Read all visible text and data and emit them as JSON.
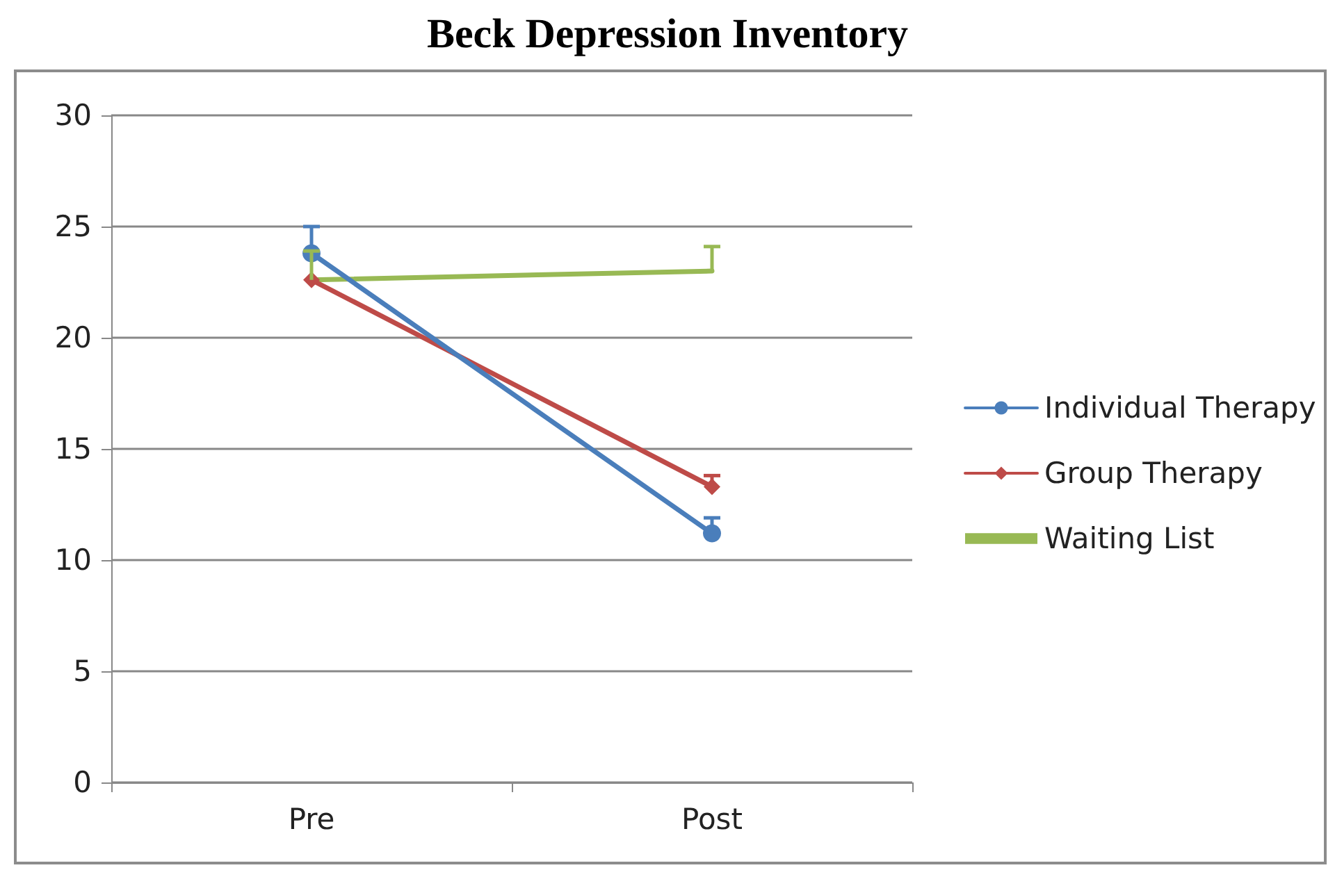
{
  "chart_data": {
    "type": "line",
    "title": "Beck Depression Inventory",
    "categories": [
      "Pre",
      "Post"
    ],
    "series": [
      {
        "name": "Individual Therapy",
        "color": "#4a7ebb",
        "marker": "circle",
        "values": [
          23.8,
          11.2
        ],
        "errors": [
          [
            23.8,
            25.0
          ],
          [
            11.2,
            11.9
          ]
        ]
      },
      {
        "name": "Group Therapy",
        "color": "#be4b48",
        "marker": "diamond",
        "values": [
          22.6,
          13.3
        ],
        "errors": [
          null,
          [
            13.3,
            13.8
          ]
        ]
      },
      {
        "name": "Waiting List",
        "color": "#98b954",
        "marker": "none",
        "values": [
          22.6,
          23.0
        ],
        "errors": [
          [
            22.6,
            23.9
          ],
          [
            23.0,
            24.1
          ]
        ]
      }
    ],
    "ylim": [
      0,
      30
    ],
    "yticks": [
      0,
      5,
      10,
      15,
      20,
      25,
      30
    ],
    "grid": "y",
    "legend": "right"
  }
}
